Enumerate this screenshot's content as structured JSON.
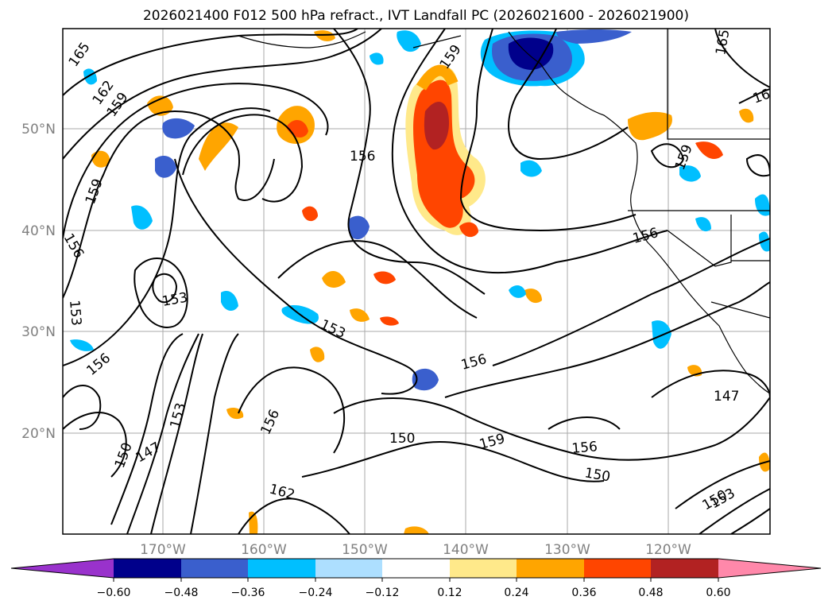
{
  "title": "2026021400 F012 500 hPa refract., IVT Landfall PC (2026021600 - 2026021900)",
  "lat_labels": [
    "50°N",
    "40°N",
    "30°N",
    "20°N"
  ],
  "lon_labels": [
    "170°W",
    "160°W",
    "150°W",
    "140°W",
    "130°W",
    "120°W"
  ],
  "contour_labels": [
    "165",
    "162",
    "159",
    "159",
    "156",
    "156",
    "153",
    "153",
    "150",
    "147",
    "153",
    "156",
    "156",
    "153",
    "159",
    "156",
    "150",
    "156",
    "150",
    "162",
    "153",
    "150",
    "147",
    "159",
    "165",
    "16",
    "159",
    "156"
  ],
  "colorbar": {
    "ticks": [
      "−0.60",
      "−0.48",
      "−0.36",
      "−0.24",
      "−0.12",
      "0.12",
      "0.24",
      "0.36",
      "0.48",
      "0.60"
    ],
    "colors": [
      "#9932CC",
      "#00008B",
      "#3A5FCD",
      "#00BFFF",
      "#ADDFFF",
      "#FFFFFF",
      "#FFE98A",
      "#FFA500",
      "#FF4500",
      "#B22222",
      "#FF88AA"
    ]
  }
}
